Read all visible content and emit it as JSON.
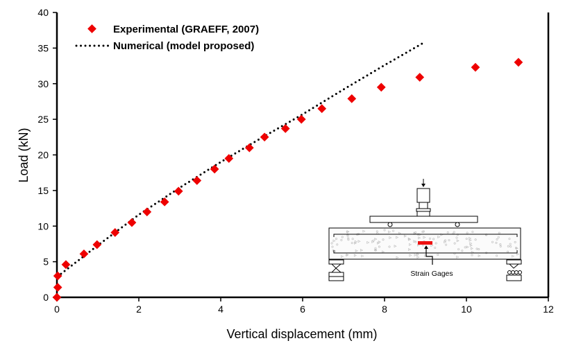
{
  "chart_data": {
    "type": "scatter",
    "xlabel": "Vertical displacement  (mm)",
    "ylabel": "Load (kN)",
    "xlim": [
      0,
      12
    ],
    "ylim": [
      0,
      40
    ],
    "xticks": [
      0,
      2,
      4,
      6,
      8,
      10,
      12
    ],
    "yticks": [
      0,
      5,
      10,
      15,
      20,
      25,
      30,
      35,
      40
    ],
    "grid": false,
    "legend_position": "top-left",
    "series": [
      {
        "name": "Experimental (GRAEFF, 2007)",
        "style": "markers",
        "marker": "diamond",
        "color": "#ee0000",
        "x": [
          0,
          0.02,
          0.02,
          0.22,
          0.66,
          0.98,
          1.42,
          1.83,
          2.2,
          2.63,
          2.97,
          3.42,
          3.85,
          4.2,
          4.7,
          5.07,
          5.58,
          5.97,
          6.47,
          7.2,
          7.92,
          8.86,
          10.22,
          11.27
        ],
        "y": [
          0,
          1.4,
          3.0,
          4.6,
          6.1,
          7.4,
          9.1,
          10.5,
          12.0,
          13.4,
          14.9,
          16.4,
          18.0,
          19.5,
          21.0,
          22.5,
          23.7,
          25.0,
          26.5,
          27.9,
          29.5,
          30.9,
          32.3,
          33.0
        ]
      },
      {
        "name": "Numerical (model proposed)",
        "style": "dotted-line",
        "color": "#000000",
        "x": [
          0.1,
          1,
          2,
          3,
          4,
          5,
          6,
          7,
          8,
          9
        ],
        "y": [
          3.3,
          7.3,
          11.6,
          15.4,
          19.0,
          22.4,
          25.7,
          29.2,
          32.6,
          35.9
        ]
      }
    ],
    "inset": {
      "label": "Strain Gages"
    }
  }
}
